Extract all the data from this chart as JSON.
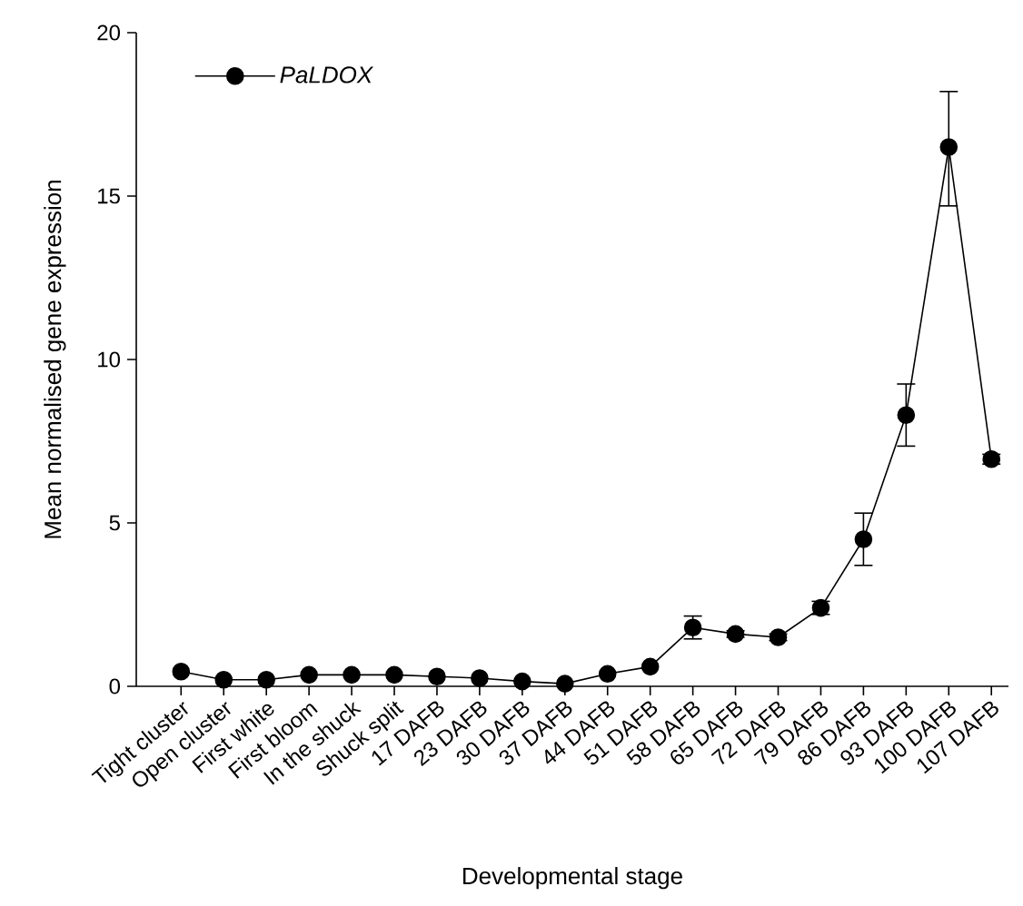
{
  "chart_data": {
    "type": "line",
    "xlabel": "Developmental stage",
    "ylabel": "Mean normalised gene expression",
    "categories": [
      "Tight cluster",
      "Open cluster",
      "First white",
      "First bloom",
      "In the shuck",
      "Shuck split",
      "17 DAFB",
      "23 DAFB",
      "30 DAFB",
      "37 DAFB",
      "44 DAFB",
      "51 DAFB",
      "58 DAFB",
      "65 DAFB",
      "72 DAFB",
      "79 DAFB",
      "86 DAFB",
      "93 DAFB",
      "100 DAFB",
      "107 DAFB"
    ],
    "series": [
      {
        "name": "PaLDOX",
        "color": "#000000",
        "values": [
          0.45,
          0.2,
          0.2,
          0.35,
          0.35,
          0.35,
          0.3,
          0.25,
          0.15,
          0.08,
          0.38,
          0.6,
          1.8,
          1.6,
          1.5,
          2.4,
          4.5,
          8.3,
          16.5,
          6.95
        ],
        "errors": [
          null,
          null,
          null,
          null,
          null,
          null,
          null,
          null,
          null,
          null,
          null,
          null,
          0.35,
          0.1,
          0.1,
          0.2,
          0.8,
          0.95,
          [
            14.7,
            18.2
          ],
          0.15
        ]
      }
    ],
    "ylim": [
      0,
      20
    ],
    "yticks": [
      0,
      5,
      10,
      15,
      20
    ],
    "grid": false,
    "legend": "top left",
    "marker": "circle",
    "line_style": "solid"
  }
}
